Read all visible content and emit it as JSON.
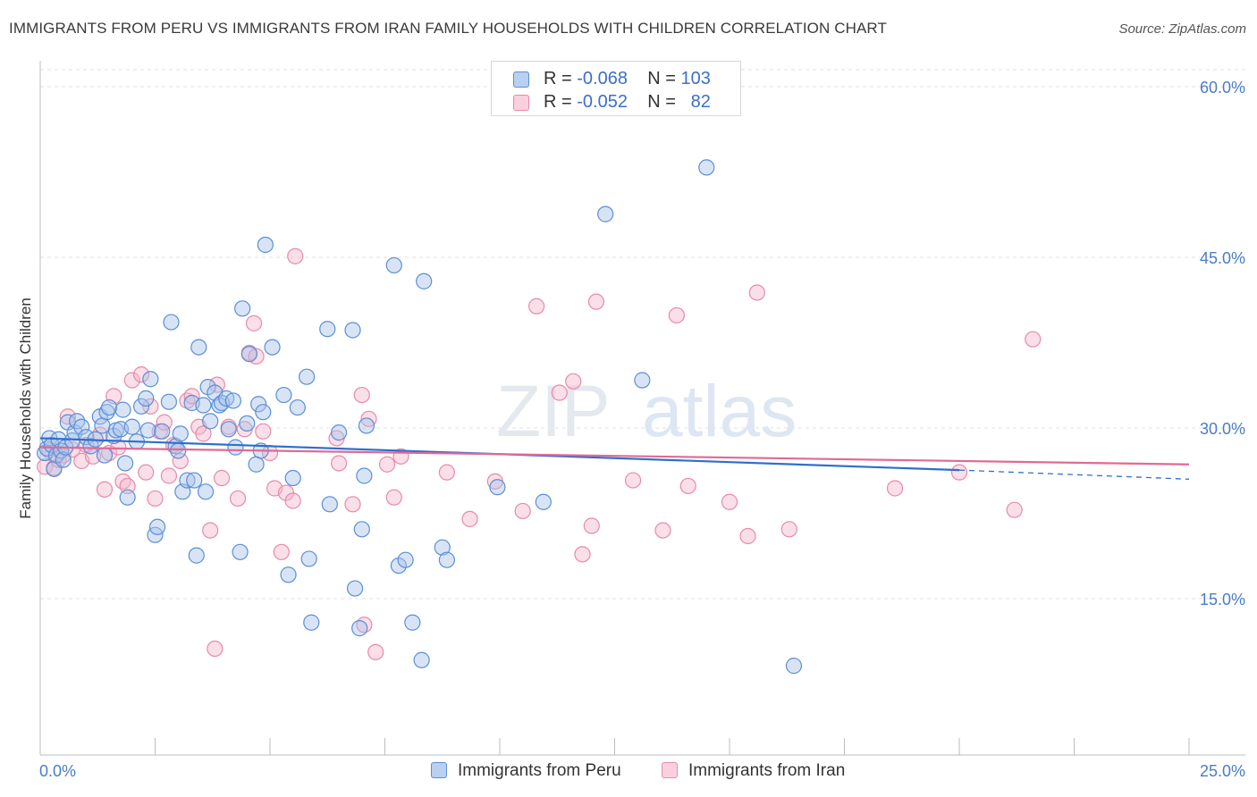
{
  "header": {
    "title": "IMMIGRANTS FROM PERU VS IMMIGRANTS FROM IRAN FAMILY HOUSEHOLDS WITH CHILDREN CORRELATION CHART",
    "source": "Source: ZipAtlas.com"
  },
  "legend": {
    "rows": [
      {
        "r_label": "R = ",
        "r_value": "-0.068",
        "n_label": "N = ",
        "n_value": "103"
      },
      {
        "r_label": "R = ",
        "r_value": "-0.052",
        "n_label": "N = ",
        "n_value": "82"
      }
    ],
    "bottom": [
      "Immigrants from Peru",
      "Immigrants from Iran"
    ]
  },
  "watermark": {
    "zip": "ZIP",
    "atlas": "atlas"
  },
  "colors": {
    "peru_fill": "#a8c4ea",
    "peru_stroke": "#5a8fd6",
    "peru_line": "#2f6fcc",
    "iran_fill": "#f5b8cb",
    "iran_stroke": "#e88aa8",
    "iran_line": "#e06a95",
    "tick_label": "#4a7cc9",
    "grid": "#e0e0e0"
  },
  "chart_data": {
    "type": "scatter",
    "title": "IMMIGRANTS FROM PERU VS IMMIGRANTS FROM IRAN FAMILY HOUSEHOLDS WITH CHILDREN CORRELATION CHART",
    "xlabel": "",
    "ylabel": "Family Households with Children",
    "xlim": [
      0,
      25
    ],
    "ylim": [
      0,
      60
    ],
    "x_tick_labels": [
      "0.0%",
      "25.0%"
    ],
    "y_ticks": [
      15,
      30,
      45,
      60
    ],
    "y_tick_labels": [
      "15.0%",
      "30.0%",
      "45.0%",
      "60.0%"
    ],
    "grid": true,
    "legend_position": "top-center",
    "series": [
      {
        "name": "Immigrants from Peru",
        "r": -0.068,
        "n": 103,
        "trend": {
          "x": [
            0.0,
            20.0,
            25.0
          ],
          "y": [
            29.1,
            26.3,
            25.5
          ],
          "dashed_from": 20.0
        },
        "points": [
          [
            0.1,
            27.8
          ],
          [
            0.15,
            28.2
          ],
          [
            0.2,
            29.1
          ],
          [
            0.25,
            28.5
          ],
          [
            0.3,
            26.4
          ],
          [
            0.35,
            27.6
          ],
          [
            0.4,
            29.0
          ],
          [
            0.45,
            28.0
          ],
          [
            0.5,
            27.2
          ],
          [
            0.55,
            28.3
          ],
          [
            0.6,
            30.5
          ],
          [
            0.7,
            28.9
          ],
          [
            0.75,
            29.6
          ],
          [
            0.8,
            30.6
          ],
          [
            0.9,
            30.1
          ],
          [
            1.0,
            29.2
          ],
          [
            1.1,
            28.4
          ],
          [
            1.2,
            29.0
          ],
          [
            1.3,
            31.0
          ],
          [
            1.35,
            30.2
          ],
          [
            1.4,
            27.6
          ],
          [
            1.45,
            31.4
          ],
          [
            1.5,
            31.8
          ],
          [
            1.6,
            29.3
          ],
          [
            1.65,
            29.8
          ],
          [
            1.75,
            29.9
          ],
          [
            1.8,
            31.6
          ],
          [
            1.85,
            26.9
          ],
          [
            1.9,
            23.9
          ],
          [
            2.0,
            30.1
          ],
          [
            2.1,
            28.8
          ],
          [
            2.2,
            31.9
          ],
          [
            2.3,
            32.6
          ],
          [
            2.35,
            29.8
          ],
          [
            2.4,
            34.3
          ],
          [
            2.5,
            20.6
          ],
          [
            2.55,
            21.3
          ],
          [
            2.65,
            29.7
          ],
          [
            2.8,
            32.3
          ],
          [
            2.85,
            39.3
          ],
          [
            2.95,
            28.4
          ],
          [
            3.0,
            28.0
          ],
          [
            3.05,
            29.5
          ],
          [
            3.1,
            24.4
          ],
          [
            3.2,
            25.4
          ],
          [
            3.3,
            32.2
          ],
          [
            3.35,
            25.4
          ],
          [
            3.4,
            18.8
          ],
          [
            3.45,
            37.1
          ],
          [
            3.55,
            32.0
          ],
          [
            3.6,
            24.4
          ],
          [
            3.65,
            33.6
          ],
          [
            3.7,
            30.6
          ],
          [
            3.8,
            33.1
          ],
          [
            3.9,
            32.0
          ],
          [
            3.95,
            32.2
          ],
          [
            4.05,
            32.6
          ],
          [
            4.1,
            29.9
          ],
          [
            4.2,
            32.4
          ],
          [
            4.25,
            28.3
          ],
          [
            4.35,
            19.1
          ],
          [
            4.4,
            40.5
          ],
          [
            4.5,
            30.4
          ],
          [
            4.55,
            36.5
          ],
          [
            4.7,
            26.8
          ],
          [
            4.75,
            32.1
          ],
          [
            4.8,
            28.0
          ],
          [
            4.85,
            31.4
          ],
          [
            4.9,
            46.1
          ],
          [
            5.05,
            37.1
          ],
          [
            5.3,
            32.9
          ],
          [
            5.4,
            17.1
          ],
          [
            5.5,
            25.6
          ],
          [
            5.6,
            31.8
          ],
          [
            5.8,
            34.5
          ],
          [
            5.85,
            18.5
          ],
          [
            5.9,
            12.9
          ],
          [
            6.25,
            38.7
          ],
          [
            6.3,
            23.3
          ],
          [
            6.5,
            29.6
          ],
          [
            6.8,
            38.6
          ],
          [
            6.85,
            15.9
          ],
          [
            6.95,
            12.4
          ],
          [
            7.0,
            21.1
          ],
          [
            7.05,
            25.8
          ],
          [
            7.1,
            30.2
          ],
          [
            7.7,
            44.3
          ],
          [
            7.8,
            17.9
          ],
          [
            7.95,
            18.4
          ],
          [
            8.1,
            12.9
          ],
          [
            8.3,
            9.6
          ],
          [
            8.35,
            42.9
          ],
          [
            8.75,
            19.5
          ],
          [
            8.85,
            18.4
          ],
          [
            9.95,
            24.8
          ],
          [
            10.95,
            23.5
          ],
          [
            12.3,
            48.8
          ],
          [
            13.1,
            34.2
          ],
          [
            14.5,
            52.9
          ],
          [
            16.4,
            9.1
          ]
        ]
      },
      {
        "name": "Immigrants from Iran",
        "r": -0.052,
        "n": 82,
        "trend": {
          "x": [
            0.0,
            25.0
          ],
          "y": [
            28.3,
            26.8
          ]
        },
        "points": [
          [
            0.1,
            26.6
          ],
          [
            0.2,
            28.0
          ],
          [
            0.3,
            26.5
          ],
          [
            0.4,
            27.2
          ],
          [
            0.5,
            27.6
          ],
          [
            0.6,
            31.0
          ],
          [
            0.7,
            28.1
          ],
          [
            0.9,
            27.1
          ],
          [
            1.0,
            28.5
          ],
          [
            1.15,
            27.5
          ],
          [
            1.3,
            29.4
          ],
          [
            1.4,
            24.6
          ],
          [
            1.5,
            27.8
          ],
          [
            1.6,
            32.8
          ],
          [
            1.7,
            28.3
          ],
          [
            1.8,
            25.3
          ],
          [
            1.9,
            24.9
          ],
          [
            2.0,
            34.2
          ],
          [
            2.2,
            34.7
          ],
          [
            2.3,
            26.1
          ],
          [
            2.4,
            31.9
          ],
          [
            2.5,
            23.8
          ],
          [
            2.6,
            29.7
          ],
          [
            2.7,
            30.5
          ],
          [
            2.8,
            25.8
          ],
          [
            2.9,
            28.5
          ],
          [
            3.05,
            27.1
          ],
          [
            3.2,
            32.4
          ],
          [
            3.3,
            32.8
          ],
          [
            3.45,
            30.1
          ],
          [
            3.55,
            29.5
          ],
          [
            3.7,
            21.0
          ],
          [
            3.8,
            10.6
          ],
          [
            3.85,
            33.8
          ],
          [
            3.95,
            25.6
          ],
          [
            4.1,
            30.1
          ],
          [
            4.3,
            23.8
          ],
          [
            4.45,
            29.9
          ],
          [
            4.55,
            36.6
          ],
          [
            4.65,
            39.2
          ],
          [
            4.7,
            36.3
          ],
          [
            4.85,
            29.7
          ],
          [
            5.0,
            27.8
          ],
          [
            5.1,
            24.7
          ],
          [
            5.25,
            19.1
          ],
          [
            5.35,
            24.3
          ],
          [
            5.5,
            23.6
          ],
          [
            5.55,
            45.1
          ],
          [
            6.45,
            29.1
          ],
          [
            6.5,
            26.9
          ],
          [
            6.8,
            23.3
          ],
          [
            7.0,
            32.9
          ],
          [
            7.05,
            12.7
          ],
          [
            7.15,
            30.8
          ],
          [
            7.3,
            10.3
          ],
          [
            7.55,
            26.8
          ],
          [
            7.7,
            23.9
          ],
          [
            7.85,
            27.5
          ],
          [
            8.85,
            26.1
          ],
          [
            9.35,
            22.0
          ],
          [
            9.9,
            25.3
          ],
          [
            10.5,
            22.7
          ],
          [
            10.8,
            40.7
          ],
          [
            11.3,
            33.1
          ],
          [
            11.6,
            34.1
          ],
          [
            11.8,
            18.9
          ],
          [
            12.0,
            21.4
          ],
          [
            12.1,
            41.1
          ],
          [
            12.9,
            25.4
          ],
          [
            13.55,
            21.0
          ],
          [
            13.85,
            39.9
          ],
          [
            14.1,
            24.9
          ],
          [
            15.0,
            23.5
          ],
          [
            15.4,
            20.5
          ],
          [
            15.6,
            41.9
          ],
          [
            16.3,
            21.1
          ],
          [
            18.6,
            24.7
          ],
          [
            20.0,
            26.1
          ],
          [
            21.2,
            22.8
          ],
          [
            21.6,
            37.8
          ]
        ]
      }
    ]
  }
}
